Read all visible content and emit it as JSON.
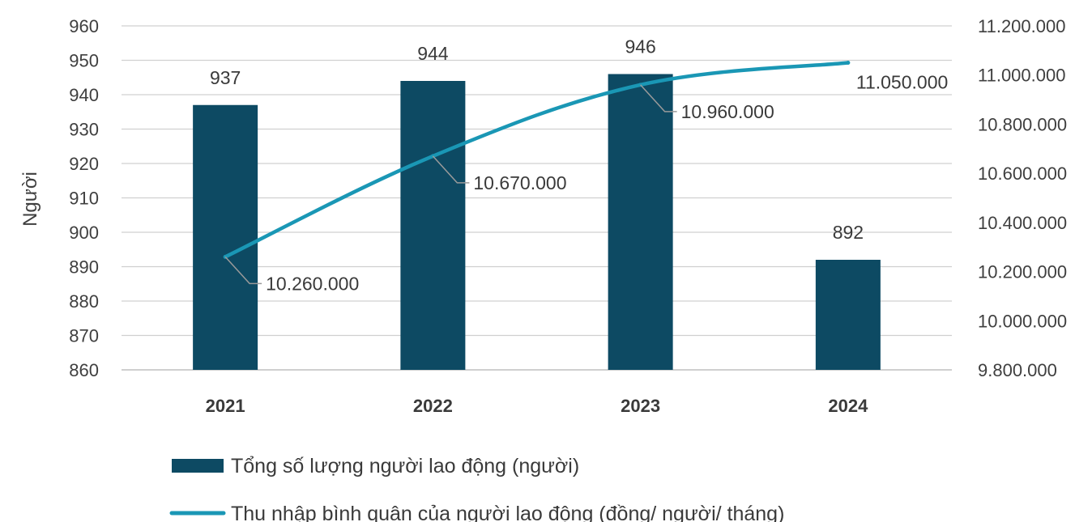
{
  "chart_data": {
    "type": "bar",
    "categories": [
      "2021",
      "2022",
      "2023",
      "2024"
    ],
    "ylabel": "Người",
    "ylim": [
      860,
      960
    ],
    "y_ticks": [
      "960",
      "950",
      "940",
      "930",
      "920",
      "910",
      "900",
      "890",
      "880",
      "870",
      "860"
    ],
    "y2lim": [
      9800000,
      11200000
    ],
    "y2_ticks": [
      "11.200.000",
      "11.000.000",
      "10.800.000",
      "10.600.000",
      "10.400.000",
      "10.200.000",
      "10.000.000",
      "9.800.000"
    ],
    "grid": true,
    "legend_position": "bottom-left",
    "series": [
      {
        "name": "Tổng số lượng người lao động (người)",
        "kind": "bar",
        "axis": "left",
        "color": "#0d4a63",
        "values": [
          937,
          944,
          946,
          892
        ],
        "labels": [
          "937",
          "944",
          "946",
          "892"
        ]
      },
      {
        "name": "Thu nhập bình quân của người lao động (đồng/ người/ tháng)",
        "kind": "line",
        "axis": "right",
        "color": "#1a97b5",
        "values": [
          10260000,
          10670000,
          10960000,
          11050000
        ],
        "labels": [
          "10.260.000",
          "10.670.000",
          "10.960.000",
          "11.050.000"
        ]
      }
    ]
  }
}
